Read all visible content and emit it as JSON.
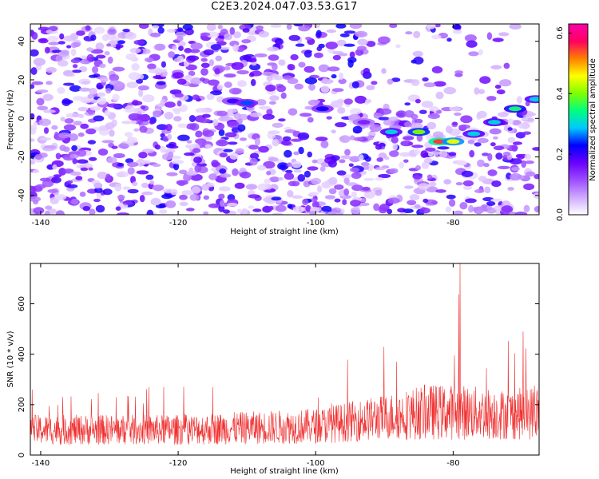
{
  "title": "C2E3.2024.047.03.53.G17",
  "chart_data": [
    {
      "type": "heatmap",
      "xlabel": "Height of straight line (km)",
      "ylabel": "Frequency (Hz)",
      "xlim": [
        -141.5,
        -67.5
      ],
      "ylim": [
        -50,
        49
      ],
      "x_ticks": [
        -140,
        -120,
        -100,
        -80
      ],
      "y_ticks": [
        -40,
        -20,
        0,
        20,
        40
      ],
      "colorbar": {
        "label": "Normalized spectral amplitude",
        "range": [
          0,
          0.63
        ],
        "ticks": [
          0.0,
          0.2,
          0.4,
          0.6
        ],
        "colors": [
          "#ffffff",
          "#cfa9ff",
          "#9d4dff",
          "#6a00ff",
          "#0000ff",
          "#00c8ff",
          "#00ff7f",
          "#7fff00",
          "#ffff00",
          "#ff8000",
          "#ff0060",
          "#ff00aa"
        ]
      },
      "ridge": {
        "description_free": true,
        "points": [
          {
            "x": -112,
            "y": 9,
            "amp": 0.2
          },
          {
            "x": -110,
            "y": 8,
            "amp": 0.25
          },
          {
            "x": -99,
            "y": 5,
            "amp": 0.22
          },
          {
            "x": -93,
            "y": -2,
            "amp": 0.15
          },
          {
            "x": -89,
            "y": -7,
            "amp": 0.3
          },
          {
            "x": -85,
            "y": -7,
            "amp": 0.4
          },
          {
            "x": -82,
            "y": -12,
            "amp": 0.55
          },
          {
            "x": -80,
            "y": -12,
            "amp": 0.45
          },
          {
            "x": -77,
            "y": -8,
            "amp": 0.3
          },
          {
            "x": -74,
            "y": -2,
            "amp": 0.3
          },
          {
            "x": -71,
            "y": 5,
            "amp": 0.35
          },
          {
            "x": -68,
            "y": 10,
            "amp": 0.3
          }
        ]
      }
    },
    {
      "type": "line",
      "xlabel": "Height of straight line (km)",
      "ylabel": "SNR (10 * v/v)",
      "xlim": [
        -141.5,
        -67.5
      ],
      "ylim": [
        0,
        760
      ],
      "x_ticks": [
        -140,
        -120,
        -100,
        -80
      ],
      "y_ticks": [
        0,
        200,
        400,
        600
      ],
      "line_color": "#f03030",
      "envelope": [
        {
          "x": -141.5,
          "base": 100,
          "spread": 60,
          "peak": 270
        },
        {
          "x": -120,
          "base": 100,
          "spread": 60,
          "peak": 290
        },
        {
          "x": -100,
          "base": 115,
          "spread": 70,
          "peak": 320
        },
        {
          "x": -90,
          "base": 150,
          "spread": 90,
          "peak": 450
        },
        {
          "x": -84,
          "base": 170,
          "spread": 110,
          "peak": 520
        },
        {
          "x": -79,
          "base": 170,
          "spread": 110,
          "peak": 760
        },
        {
          "x": -72,
          "base": 160,
          "spread": 100,
          "peak": 480
        },
        {
          "x": -67.5,
          "base": 170,
          "spread": 110,
          "peak": 540
        }
      ]
    }
  ]
}
